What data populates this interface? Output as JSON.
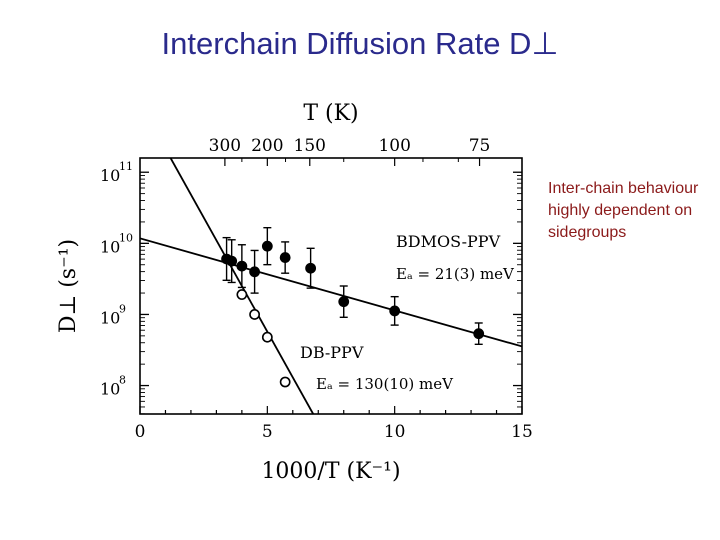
{
  "slide": {
    "title": "Interchain Diffusion Rate D⊥",
    "note": "Inter-chain behaviour highly dependent on sidegroups"
  },
  "chart_data": {
    "type": "scatter",
    "xlabel": "1000/T (K⁻¹)",
    "ylabel": "D⊥ (s⁻¹)",
    "top_axis_label": "T (K)",
    "xlim": [
      0,
      15
    ],
    "ylim_log10": [
      7.6,
      11.2
    ],
    "y_scale": "log",
    "grid": false,
    "x_ticks": [
      {
        "value": 0,
        "label": "0"
      },
      {
        "value": 5,
        "label": "5"
      },
      {
        "value": 10,
        "label": "10"
      },
      {
        "value": 15,
        "label": "15"
      }
    ],
    "y_ticks": [
      {
        "value": 8,
        "base": "10",
        "exp": "8"
      },
      {
        "value": 9,
        "base": "10",
        "exp": "9"
      },
      {
        "value": 10,
        "base": "10",
        "exp": "10"
      },
      {
        "value": 11,
        "base": "10",
        "exp": "11"
      }
    ],
    "top_ticks": [
      {
        "label": "300",
        "T": 300
      },
      {
        "label": "200",
        "T": 200
      },
      {
        "label": "150",
        "T": 150
      },
      {
        "label": "100",
        "T": 100
      },
      {
        "label": "75",
        "T": 75
      }
    ],
    "series": [
      {
        "name": "BDMOS-PPV",
        "annotation": "Eₐ = 21(3) meV",
        "marker": "filled-circle",
        "color": "#000000",
        "points": [
          {
            "x": 3.4,
            "log10_y": 9.78,
            "err": 0.3
          },
          {
            "x": 3.6,
            "log10_y": 9.75,
            "err": 0.3
          },
          {
            "x": 4.0,
            "log10_y": 9.68,
            "err": 0.3
          },
          {
            "x": 4.5,
            "log10_y": 9.6,
            "err": 0.3
          },
          {
            "x": 5.0,
            "log10_y": 9.96,
            "err": 0.26
          },
          {
            "x": 5.7,
            "log10_y": 9.8,
            "err": 0.22
          },
          {
            "x": 6.7,
            "log10_y": 9.65,
            "err": 0.28
          },
          {
            "x": 8.0,
            "log10_y": 9.18,
            "err": 0.22
          },
          {
            "x": 10.0,
            "log10_y": 9.05,
            "err": 0.2
          },
          {
            "x": 13.3,
            "log10_y": 8.73,
            "err": 0.15
          }
        ],
        "fit": {
          "x0": 0,
          "log10_y0": 10.07,
          "x1": 15,
          "log10_y1": 8.55
        }
      },
      {
        "name": "DB-PPV",
        "annotation": "Eₐ = 130(10) meV",
        "marker": "open-circle",
        "color": "#000000",
        "points": [
          {
            "x": 4.0,
            "log10_y": 9.28
          },
          {
            "x": 4.5,
            "log10_y": 9.0
          },
          {
            "x": 5.0,
            "log10_y": 8.68
          },
          {
            "x": 5.7,
            "log10_y": 8.05
          }
        ],
        "fit": {
          "x0": 1.2,
          "log10_y0": 11.2,
          "x1": 6.8,
          "log10_y1": 7.6
        }
      }
    ]
  }
}
